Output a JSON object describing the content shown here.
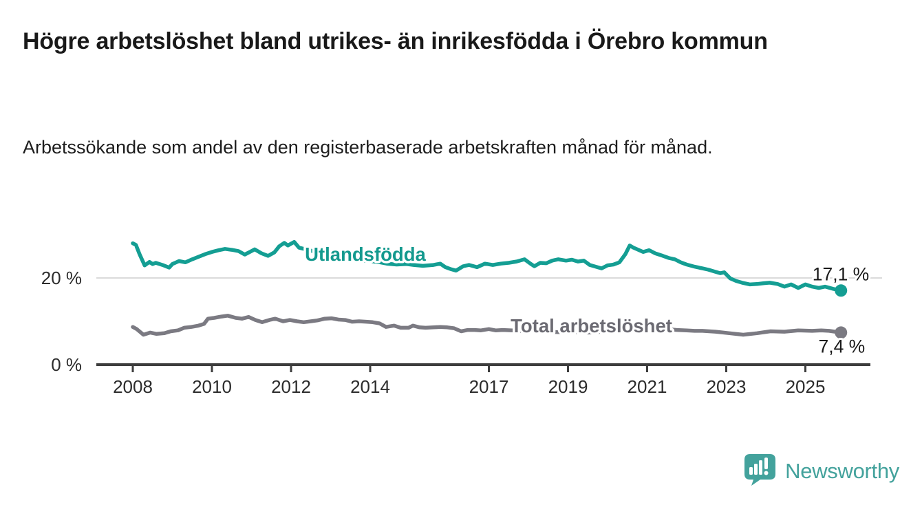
{
  "header": {
    "title": "Högre arbetslöshet bland utrikes- än inrikesfödda i Örebro kommun",
    "subtitle": "Arbetssökande som andel av den registerbaserade arbetskraften månad för månad."
  },
  "chart_data": {
    "type": "line",
    "x_axis": {
      "ticks": [
        2008,
        2010,
        2012,
        2014,
        2017,
        2019,
        2021,
        2023,
        2025
      ],
      "labels": [
        "2008",
        "2010",
        "2012",
        "2014",
        "2017",
        "2019",
        "2021",
        "2023",
        "2025"
      ]
    },
    "y_axis": {
      "unit": "%",
      "gridlines": [
        {
          "value": 20,
          "label": "20 %"
        },
        {
          "value": 0,
          "label": "0 %"
        }
      ]
    },
    "xlim": [
      2007.08,
      2026.6
    ],
    "ylim": [
      0,
      31.7
    ],
    "legend_position": "inline-labels",
    "grid": "horizontal-single",
    "series": [
      {
        "name": "Utlandsfödda",
        "color": "#149e93",
        "label_color": "#13998e",
        "end_label": "17,1 %",
        "end_value": 17.1,
        "label_anchor": {
          "year": 2012.35,
          "value": 24.0
        },
        "points": [
          [
            2008.0,
            28.0
          ],
          [
            2008.08,
            27.6
          ],
          [
            2008.17,
            25.5
          ],
          [
            2008.3,
            22.9
          ],
          [
            2008.42,
            23.7
          ],
          [
            2008.5,
            23.2
          ],
          [
            2008.58,
            23.5
          ],
          [
            2008.75,
            23.0
          ],
          [
            2008.92,
            22.4
          ],
          [
            2009.0,
            23.2
          ],
          [
            2009.17,
            23.9
          ],
          [
            2009.33,
            23.6
          ],
          [
            2009.5,
            24.3
          ],
          [
            2009.67,
            24.9
          ],
          [
            2009.83,
            25.5
          ],
          [
            2010.0,
            26.0
          ],
          [
            2010.17,
            26.4
          ],
          [
            2010.33,
            26.7
          ],
          [
            2010.5,
            26.5
          ],
          [
            2010.67,
            26.2
          ],
          [
            2010.83,
            25.4
          ],
          [
            2011.0,
            26.2
          ],
          [
            2011.08,
            26.6
          ],
          [
            2011.25,
            25.7
          ],
          [
            2011.42,
            25.1
          ],
          [
            2011.58,
            25.9
          ],
          [
            2011.7,
            27.3
          ],
          [
            2011.83,
            28.1
          ],
          [
            2011.92,
            27.5
          ],
          [
            2012.0,
            27.9
          ],
          [
            2012.08,
            28.3
          ],
          [
            2012.2,
            27.0
          ],
          [
            2012.33,
            26.7
          ],
          [
            2012.5,
            26.3
          ],
          [
            2012.75,
            25.6
          ],
          [
            2013.0,
            25.2
          ],
          [
            2013.25,
            24.7
          ],
          [
            2013.5,
            24.3
          ],
          [
            2013.75,
            24.0
          ],
          [
            2014.0,
            23.9
          ],
          [
            2014.25,
            23.6
          ],
          [
            2014.42,
            23.3
          ],
          [
            2014.67,
            23.1
          ],
          [
            2014.92,
            23.2
          ],
          [
            2015.1,
            23.0
          ],
          [
            2015.33,
            22.8
          ],
          [
            2015.6,
            23.0
          ],
          [
            2015.77,
            23.3
          ],
          [
            2015.9,
            22.5
          ],
          [
            2016.05,
            22.0
          ],
          [
            2016.17,
            21.7
          ],
          [
            2016.35,
            22.7
          ],
          [
            2016.5,
            23.0
          ],
          [
            2016.7,
            22.5
          ],
          [
            2016.9,
            23.3
          ],
          [
            2017.1,
            23.0
          ],
          [
            2017.3,
            23.3
          ],
          [
            2017.5,
            23.5
          ],
          [
            2017.7,
            23.8
          ],
          [
            2017.9,
            24.3
          ],
          [
            2018.05,
            23.3
          ],
          [
            2018.15,
            22.7
          ],
          [
            2018.3,
            23.5
          ],
          [
            2018.45,
            23.4
          ],
          [
            2018.6,
            24.0
          ],
          [
            2018.75,
            24.3
          ],
          [
            2018.95,
            24.0
          ],
          [
            2019.1,
            24.2
          ],
          [
            2019.25,
            23.8
          ],
          [
            2019.4,
            24.0
          ],
          [
            2019.55,
            23.0
          ],
          [
            2019.7,
            22.6
          ],
          [
            2019.85,
            22.2
          ],
          [
            2020.0,
            22.9
          ],
          [
            2020.15,
            23.1
          ],
          [
            2020.3,
            23.6
          ],
          [
            2020.45,
            25.5
          ],
          [
            2020.56,
            27.5
          ],
          [
            2020.65,
            27.0
          ],
          [
            2020.75,
            26.6
          ],
          [
            2020.9,
            26.0
          ],
          [
            2021.05,
            26.4
          ],
          [
            2021.2,
            25.7
          ],
          [
            2021.4,
            25.1
          ],
          [
            2021.55,
            24.6
          ],
          [
            2021.7,
            24.3
          ],
          [
            2021.85,
            23.6
          ],
          [
            2022.0,
            23.1
          ],
          [
            2022.2,
            22.6
          ],
          [
            2022.4,
            22.2
          ],
          [
            2022.55,
            21.9
          ],
          [
            2022.7,
            21.5
          ],
          [
            2022.85,
            21.1
          ],
          [
            2022.95,
            21.3
          ],
          [
            2023.1,
            19.9
          ],
          [
            2023.25,
            19.3
          ],
          [
            2023.4,
            18.9
          ],
          [
            2023.6,
            18.5
          ],
          [
            2023.78,
            18.6
          ],
          [
            2023.95,
            18.8
          ],
          [
            2024.1,
            18.9
          ],
          [
            2024.3,
            18.6
          ],
          [
            2024.47,
            18.0
          ],
          [
            2024.64,
            18.5
          ],
          [
            2024.82,
            17.7
          ],
          [
            2025.0,
            18.5
          ],
          [
            2025.17,
            18.0
          ],
          [
            2025.34,
            17.7
          ],
          [
            2025.5,
            18.0
          ],
          [
            2025.7,
            17.5
          ],
          [
            2025.9,
            17.1
          ]
        ]
      },
      {
        "name": "Total arbetslöshet",
        "color": "#7b7a82",
        "label_color": "#6b6a72",
        "end_label": "7,4 %",
        "end_value": 7.4,
        "label_anchor": {
          "year": 2017.55,
          "value": 7.45
        },
        "points": [
          [
            2008.0,
            8.7
          ],
          [
            2008.1,
            8.2
          ],
          [
            2008.27,
            6.9
          ],
          [
            2008.44,
            7.4
          ],
          [
            2008.6,
            7.1
          ],
          [
            2008.8,
            7.25
          ],
          [
            2008.96,
            7.7
          ],
          [
            2009.14,
            7.9
          ],
          [
            2009.3,
            8.5
          ],
          [
            2009.48,
            8.7
          ],
          [
            2009.66,
            9.0
          ],
          [
            2009.8,
            9.4
          ],
          [
            2009.9,
            10.6
          ],
          [
            2010.06,
            10.8
          ],
          [
            2010.24,
            11.1
          ],
          [
            2010.4,
            11.3
          ],
          [
            2010.6,
            10.8
          ],
          [
            2010.76,
            10.6
          ],
          [
            2010.93,
            11.0
          ],
          [
            2011.1,
            10.3
          ],
          [
            2011.27,
            9.8
          ],
          [
            2011.45,
            10.3
          ],
          [
            2011.6,
            10.6
          ],
          [
            2011.8,
            10.0
          ],
          [
            2011.97,
            10.3
          ],
          [
            2012.15,
            10.0
          ],
          [
            2012.32,
            9.8
          ],
          [
            2012.5,
            10.0
          ],
          [
            2012.67,
            10.2
          ],
          [
            2012.85,
            10.6
          ],
          [
            2013.02,
            10.7
          ],
          [
            2013.2,
            10.4
          ],
          [
            2013.37,
            10.3
          ],
          [
            2013.54,
            9.9
          ],
          [
            2013.72,
            10.0
          ],
          [
            2013.9,
            9.9
          ],
          [
            2014.06,
            9.8
          ],
          [
            2014.24,
            9.5
          ],
          [
            2014.4,
            8.7
          ],
          [
            2014.6,
            9.0
          ],
          [
            2014.77,
            8.5
          ],
          [
            2014.97,
            8.5
          ],
          [
            2015.08,
            9.0
          ],
          [
            2015.25,
            8.6
          ],
          [
            2015.4,
            8.5
          ],
          [
            2015.6,
            8.6
          ],
          [
            2015.77,
            8.7
          ],
          [
            2015.95,
            8.6
          ],
          [
            2016.12,
            8.4
          ],
          [
            2016.3,
            7.7
          ],
          [
            2016.47,
            8.0
          ],
          [
            2016.64,
            8.0
          ],
          [
            2016.8,
            7.9
          ],
          [
            2017.0,
            8.2
          ],
          [
            2017.17,
            7.9
          ],
          [
            2017.35,
            8.0
          ],
          [
            2017.6,
            7.9
          ],
          [
            2017.8,
            7.8
          ],
          [
            2018.0,
            7.9
          ],
          [
            2018.25,
            7.7
          ],
          [
            2018.5,
            7.6
          ],
          [
            2018.75,
            7.5
          ],
          [
            2019.0,
            7.6
          ],
          [
            2019.25,
            7.5
          ],
          [
            2019.5,
            7.4
          ],
          [
            2019.75,
            7.5
          ],
          [
            2020.0,
            7.8
          ],
          [
            2020.3,
            8.6
          ],
          [
            2020.5,
            9.2
          ],
          [
            2020.7,
            9.0
          ],
          [
            2020.9,
            8.8
          ],
          [
            2021.1,
            8.7
          ],
          [
            2021.3,
            8.4
          ],
          [
            2021.5,
            8.2
          ],
          [
            2021.75,
            8.0
          ],
          [
            2022.0,
            7.9
          ],
          [
            2022.2,
            7.8
          ],
          [
            2022.4,
            7.8
          ],
          [
            2022.73,
            7.6
          ],
          [
            2023.08,
            7.25
          ],
          [
            2023.43,
            6.9
          ],
          [
            2023.78,
            7.25
          ],
          [
            2024.12,
            7.7
          ],
          [
            2024.47,
            7.6
          ],
          [
            2024.82,
            7.9
          ],
          [
            2025.17,
            7.8
          ],
          [
            2025.4,
            7.9
          ],
          [
            2025.6,
            7.8
          ],
          [
            2025.9,
            7.4
          ]
        ]
      }
    ]
  },
  "branding": {
    "name": "Newsworthy",
    "color": "#43a29c",
    "icon": "newsworthy-bar-chart-bubble-icon"
  }
}
